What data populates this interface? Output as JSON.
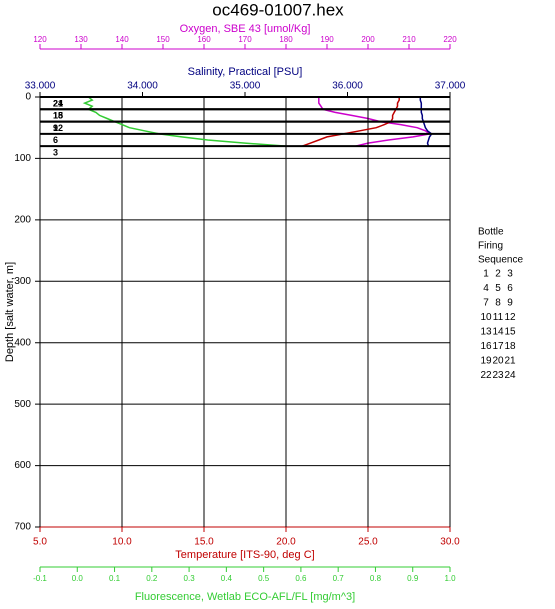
{
  "chart_data": {
    "type": "profile",
    "title": "oc469-01007.hex",
    "depth_axis": {
      "label": "Depth [salt water, m]",
      "lim": [
        0,
        700
      ],
      "ticks": [
        0,
        100,
        200,
        300,
        400,
        500,
        600,
        700
      ]
    },
    "depths": [
      0,
      5,
      10,
      15,
      20,
      25,
      30,
      35,
      40,
      45,
      50,
      55,
      60,
      65,
      70,
      75,
      80
    ],
    "axes": [
      {
        "label": "Oxygen, SBE 43 [umol/Kg]",
        "color": "#cc00cc",
        "position": "top-outer",
        "lim": [
          120,
          220
        ],
        "ticks": [
          120,
          130,
          140,
          150,
          160,
          170,
          180,
          190,
          200,
          210,
          220
        ],
        "values": [
          188,
          188,
          188,
          188.5,
          189,
          192,
          196,
          200,
          203,
          208,
          212,
          214,
          215,
          211,
          205,
          200,
          197
        ]
      },
      {
        "label": "Salinity, Practical [PSU]",
        "color": "#000080",
        "position": "top-inner",
        "lim": [
          33,
          37
        ],
        "ticks": [
          {
            "value": 33,
            "label": "33.000"
          },
          {
            "value": 34,
            "label": "34.000"
          },
          {
            "value": 35,
            "label": "35.000"
          },
          {
            "value": 36,
            "label": "36.000"
          },
          {
            "value": 37,
            "label": "37.000"
          }
        ],
        "values": [
          36.71,
          36.71,
          36.72,
          36.72,
          36.72,
          36.72,
          36.73,
          36.73,
          36.74,
          36.75,
          36.76,
          36.78,
          36.82,
          36.8,
          36.79,
          36.78,
          36.79
        ]
      },
      {
        "label": "Temperature [ITS-90, deg C]",
        "color": "#c00000",
        "position": "bottom-inner",
        "lim": [
          5,
          30
        ],
        "ticks": [
          {
            "value": 5,
            "label": "5.0"
          },
          {
            "value": 10,
            "label": "10.0"
          },
          {
            "value": 15,
            "label": "15.0"
          },
          {
            "value": 20,
            "label": "20.0"
          },
          {
            "value": 25,
            "label": "25.0"
          },
          {
            "value": 30,
            "label": "30.0"
          }
        ],
        "grid": true,
        "values": [
          26.9,
          26.9,
          26.8,
          26.8,
          26.7,
          26.6,
          26.5,
          26.5,
          26.4,
          26.0,
          25.5,
          24.5,
          23.5,
          22.5,
          22.0,
          21.5,
          21.0
        ]
      },
      {
        "label": "Fluorescence, Wetlab ECO-AFL/FL [mg/m^3]",
        "color": "#33cc33",
        "position": "bottom-outer",
        "lim": [
          -0.1,
          1.0
        ],
        "ticks": [
          {
            "value": -0.1,
            "label": "-0.1"
          },
          {
            "value": 0,
            "label": "0.0"
          },
          {
            "value": 0.1,
            "label": "0.1"
          },
          {
            "value": 0.2,
            "label": "0.2"
          },
          {
            "value": 0.3,
            "label": "0.3"
          },
          {
            "value": 0.4,
            "label": "0.4"
          },
          {
            "value": 0.5,
            "label": "0.5"
          },
          {
            "value": 0.6,
            "label": "0.6"
          },
          {
            "value": 0.7,
            "label": "0.7"
          },
          {
            "value": 0.8,
            "label": "0.8"
          },
          {
            "value": 0.9,
            "label": "0.9"
          },
          {
            "value": 1.0,
            "label": "1.0"
          }
        ],
        "values": [
          0.03,
          0.04,
          0.02,
          0.04,
          0.03,
          0.05,
          0.06,
          0.08,
          0.1,
          0.12,
          0.14,
          0.18,
          0.22,
          0.28,
          0.35,
          0.45,
          0.56
        ]
      }
    ],
    "bottles": [
      {
        "depth": 0,
        "label": "24"
      },
      {
        "depth": 0,
        "label": "21"
      },
      {
        "depth": 20,
        "label": "18"
      },
      {
        "depth": 20,
        "label": "15"
      },
      {
        "depth": 40,
        "label": "12"
      },
      {
        "depth": 40,
        "label": "9"
      },
      {
        "depth": 60,
        "label": "6"
      },
      {
        "depth": 80,
        "label": "3"
      }
    ],
    "legend": {
      "title": [
        "Bottle",
        "Firing",
        "Sequence"
      ],
      "rows": [
        [
          1,
          2,
          3
        ],
        [
          4,
          5,
          6
        ],
        [
          7,
          8,
          9
        ],
        [
          10,
          11,
          12
        ],
        [
          13,
          14,
          15
        ],
        [
          16,
          17,
          18
        ],
        [
          19,
          20,
          21
        ],
        [
          22,
          23,
          24
        ]
      ]
    }
  }
}
